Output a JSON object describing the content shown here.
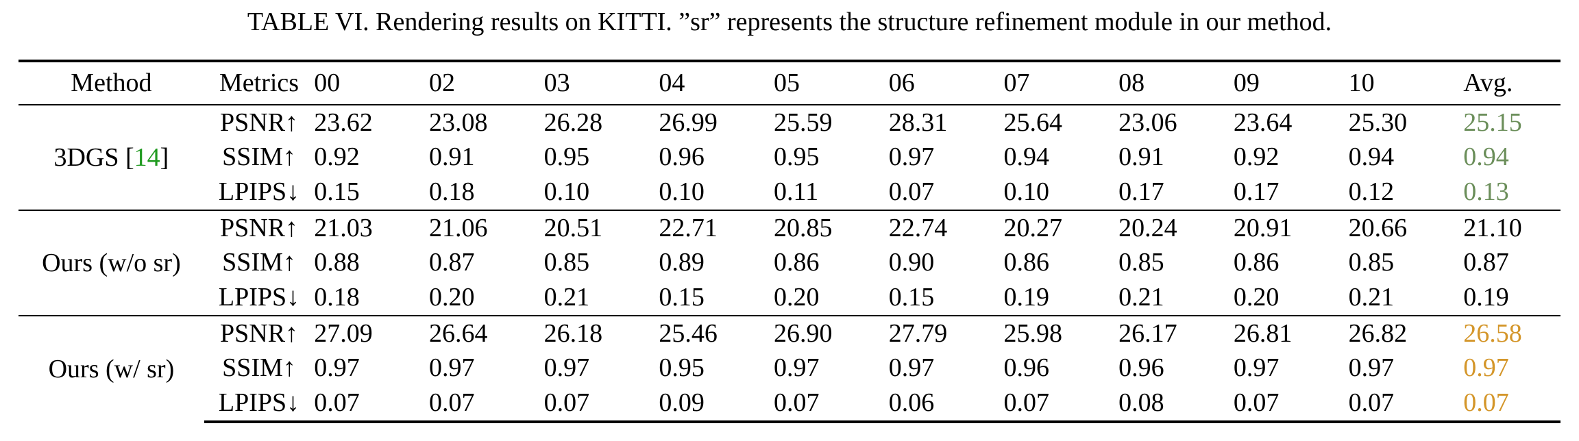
{
  "caption": "TABLE VI. Rendering results on KITTI. ”sr” represents the structure refinement module in our method.",
  "columns": [
    "Method",
    "Metrics",
    "00",
    "02",
    "03",
    "04",
    "05",
    "06",
    "07",
    "08",
    "09",
    "10",
    "Avg."
  ],
  "colors": {
    "reference_link": "#1f9a1f",
    "baseline_avg": "#6b8e5a",
    "ours_avg": "#d4962a"
  },
  "groups": [
    {
      "method": "3DGS",
      "method_ref": "14",
      "avg_color": "#6b8e5a",
      "rows": [
        {
          "metric": "PSNR↑",
          "values": [
            "23.62",
            "23.08",
            "26.28",
            "26.99",
            "25.59",
            "28.31",
            "25.64",
            "23.06",
            "23.64",
            "25.30"
          ],
          "bold": [
            false,
            false,
            true,
            true,
            false,
            true,
            false,
            false,
            false,
            false
          ],
          "avg": "25.15"
        },
        {
          "metric": "SSIM↑",
          "values": [
            "0.92",
            "0.91",
            "0.95",
            "0.96",
            "0.95",
            "0.97",
            "0.94",
            "0.91",
            "0.92",
            "0.94"
          ],
          "bold": [
            false,
            false,
            false,
            true,
            false,
            true,
            false,
            false,
            false,
            false
          ],
          "avg": "0.94"
        },
        {
          "metric": "LPIPS↓",
          "values": [
            "0.15",
            "0.18",
            "0.10",
            "0.10",
            "0.11",
            "0.07",
            "0.10",
            "0.17",
            "0.17",
            "0.12"
          ],
          "bold": [
            false,
            false,
            false,
            false,
            false,
            false,
            false,
            false,
            false,
            false
          ],
          "avg": "0.13"
        }
      ]
    },
    {
      "method": "Ours (w/o sr)",
      "method_ref": "",
      "avg_color": "#000000",
      "rows": [
        {
          "metric": "PSNR↑",
          "values": [
            "21.03",
            "21.06",
            "20.51",
            "22.71",
            "20.85",
            "22.74",
            "20.27",
            "20.24",
            "20.91",
            "20.66"
          ],
          "bold": [
            false,
            false,
            false,
            false,
            false,
            false,
            false,
            false,
            false,
            false
          ],
          "avg": "21.10"
        },
        {
          "metric": "SSIM↑",
          "values": [
            "0.88",
            "0.87",
            "0.85",
            "0.89",
            "0.86",
            "0.90",
            "0.86",
            "0.85",
            "0.86",
            "0.85"
          ],
          "bold": [
            false,
            false,
            false,
            false,
            false,
            false,
            false,
            false,
            false,
            false
          ],
          "avg": "0.87"
        },
        {
          "metric": "LPIPS↓",
          "values": [
            "0.18",
            "0.20",
            "0.21",
            "0.15",
            "0.20",
            "0.15",
            "0.19",
            "0.21",
            "0.20",
            "0.21"
          ],
          "bold": [
            false,
            false,
            false,
            false,
            false,
            false,
            false,
            false,
            false,
            false
          ],
          "avg": "0.19"
        }
      ]
    },
    {
      "method": "Ours (w/ sr)",
      "method_ref": "",
      "avg_color": "#d4962a",
      "rows": [
        {
          "metric": "PSNR↑",
          "values": [
            "27.09",
            "26.64",
            "26.18",
            "25.46",
            "26.90",
            "27.79",
            "25.98",
            "26.17",
            "26.81",
            "26.82"
          ],
          "bold": [
            true,
            true,
            false,
            false,
            true,
            false,
            true,
            true,
            true,
            true
          ],
          "avg": "26.58"
        },
        {
          "metric": "SSIM↑",
          "values": [
            "0.97",
            "0.97",
            "0.97",
            "0.95",
            "0.97",
            "0.97",
            "0.96",
            "0.96",
            "0.97",
            "0.97"
          ],
          "bold": [
            true,
            true,
            true,
            false,
            true,
            true,
            true,
            true,
            true,
            true
          ],
          "avg": "0.97"
        },
        {
          "metric": "LPIPS↓",
          "values": [
            "0.07",
            "0.07",
            "0.07",
            "0.09",
            "0.07",
            "0.06",
            "0.07",
            "0.08",
            "0.07",
            "0.07"
          ],
          "bold": [
            true,
            true,
            true,
            true,
            true,
            true,
            true,
            true,
            true,
            true
          ],
          "avg": "0.07"
        }
      ]
    }
  ]
}
